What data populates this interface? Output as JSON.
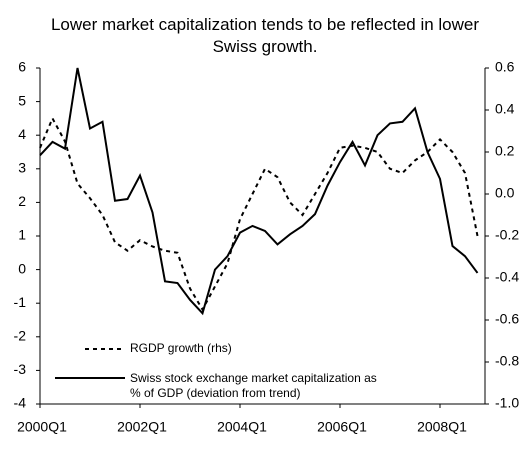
{
  "chart_data": {
    "type": "line",
    "title": "Lower market capitalization tends to be reflected in lower Swiss growth.",
    "categories": [
      "2000Q1",
      null,
      null,
      null,
      null,
      null,
      null,
      null,
      "2002Q1",
      null,
      null,
      null,
      null,
      null,
      null,
      null,
      "2004Q1",
      null,
      null,
      null,
      null,
      null,
      null,
      null,
      "2006Q1",
      null,
      null,
      null,
      null,
      null,
      null,
      null,
      "2008Q1",
      null,
      null,
      null
    ],
    "series": [
      {
        "name": "RGDP growth (rhs)",
        "color": "#000000",
        "dash": true,
        "axis": "y2",
        "values": [
          0.22,
          0.36,
          0.25,
          0.05,
          -0.02,
          -0.1,
          -0.23,
          -0.27,
          -0.22,
          -0.25,
          -0.27,
          -0.28,
          -0.45,
          -0.55,
          -0.44,
          -0.33,
          -0.12,
          0.0,
          0.12,
          0.08,
          -0.04,
          -0.1,
          0.0,
          0.1,
          0.22,
          0.23,
          0.22,
          0.2,
          0.12,
          0.1,
          0.16,
          0.2,
          0.26,
          0.2,
          0.1,
          -0.2
        ]
      },
      {
        "name": "Swiss stock exchange market capitalization as % of GDP (deviation from trend)",
        "color": "#000000",
        "dash": false,
        "values": [
          3.4,
          3.8,
          3.6,
          6.0,
          4.2,
          4.4,
          2.05,
          2.1,
          2.8,
          1.7,
          -0.35,
          -0.4,
          -0.9,
          -1.3,
          0.0,
          0.4,
          1.1,
          1.3,
          1.15,
          0.75,
          1.05,
          1.3,
          1.65,
          2.5,
          3.2,
          3.8,
          3.1,
          4.0,
          4.35,
          4.4,
          4.8,
          3.5,
          2.7,
          0.7,
          0.4,
          -0.1
        ]
      }
    ],
    "ylim": [
      -4,
      6
    ],
    "yticks": [
      -4,
      -3,
      -2,
      -1,
      0,
      1,
      2,
      3,
      4,
      5,
      6
    ],
    "y2lim": [
      -1.0,
      0.6
    ],
    "y2ticks": [
      {
        "value": -1.0,
        "label": "-1.0"
      },
      -0.8,
      -0.6,
      -0.4,
      -0.2,
      {
        "value": 0.0,
        "label": "0.0"
      },
      0.2,
      0.4,
      0.6
    ],
    "grid": false
  }
}
